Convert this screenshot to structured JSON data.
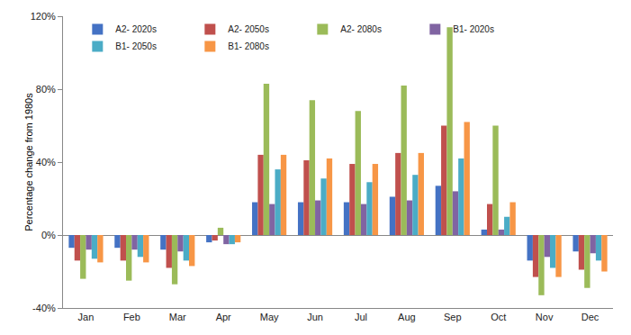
{
  "chart_data": {
    "type": "bar",
    "y_label": "Percentage change from 1980s",
    "categories": [
      "Jan",
      "Feb",
      "Mar",
      "Apr",
      "May",
      "Jun",
      "Jul",
      "Aug",
      "Sep",
      "Oct",
      "Nov",
      "Dec"
    ],
    "series": [
      {
        "name": "A2- 2020s",
        "color": "#4472c4",
        "values": [
          -7,
          -7,
          -8,
          -4,
          18,
          18,
          18,
          21,
          27,
          3,
          -14,
          -9
        ]
      },
      {
        "name": "A2- 2050s",
        "color": "#c0504d",
        "values": [
          -14,
          -14,
          -18,
          -3,
          44,
          41,
          39,
          45,
          60,
          17,
          -23,
          -19
        ]
      },
      {
        "name": "A2- 2080s",
        "color": "#9bbb59",
        "values": [
          -24,
          -25,
          -27,
          4,
          83,
          74,
          68,
          82,
          114,
          60,
          -33,
          -29
        ]
      },
      {
        "name": "B1- 2020s",
        "color": "#8064a2",
        "values": [
          -8,
          -8,
          -9,
          -5,
          17,
          19,
          17,
          19,
          24,
          3,
          -12,
          -10
        ]
      },
      {
        "name": "B1- 2050s",
        "color": "#4bacc6",
        "values": [
          -13,
          -12,
          -14,
          -5,
          36,
          31,
          29,
          33,
          42,
          10,
          -18,
          -14
        ]
      },
      {
        "name": "B1- 2080s",
        "color": "#f79646",
        "values": [
          -15,
          -15,
          -17,
          -4,
          44,
          42,
          39,
          45,
          62,
          18,
          -23,
          -20
        ]
      }
    ],
    "ylim": [
      -40,
      120
    ],
    "yticks": [
      {
        "value": -40,
        "label": "-40%"
      },
      {
        "value": 0,
        "label": "0%"
      },
      {
        "value": 40,
        "label": "40%"
      },
      {
        "value": 80,
        "label": "80%"
      },
      {
        "value": 120,
        "label": "120%"
      }
    ],
    "grid": false,
    "legend": "upper left"
  }
}
